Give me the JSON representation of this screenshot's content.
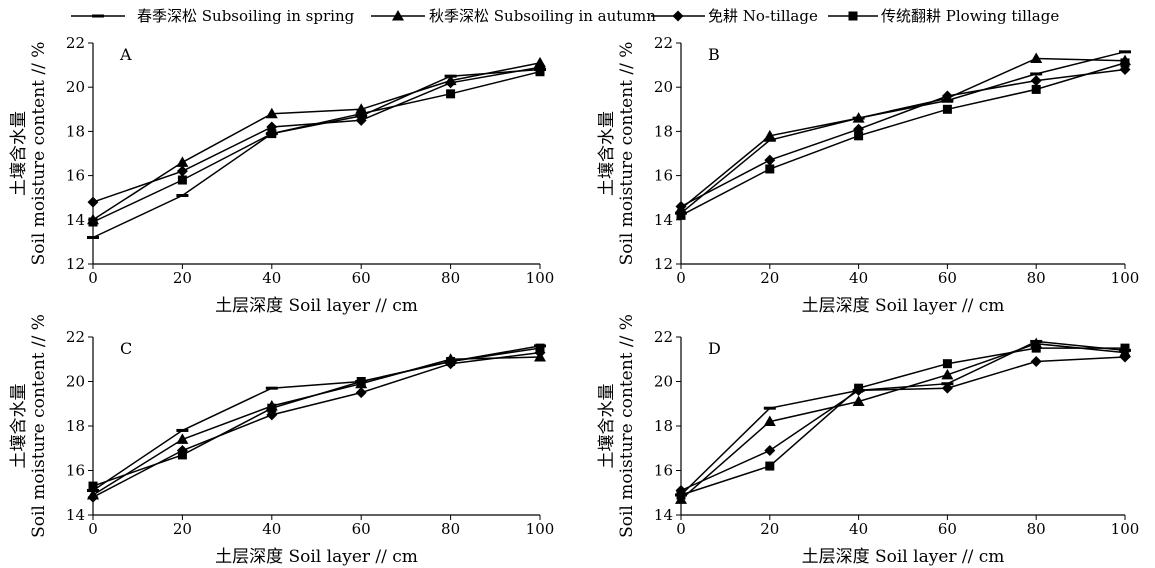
{
  "legend": {
    "items": [
      {
        "label": "春季深松 Subsoiling in spring",
        "marker": "dash"
      },
      {
        "label": "秋季深松 Subsoiling in autumn",
        "marker": "triangle"
      },
      {
        "label": "免耕 No-tillage",
        "marker": "diamond"
      },
      {
        "label": "传统翻耕 Plowing tillage",
        "marker": "square"
      }
    ]
  },
  "chart_data": [
    {
      "type": "line",
      "panel_label": "A",
      "xlabel": "土层深度 Soil layer // cm",
      "ylabel_cn": "土壤含水量",
      "ylabel_en": "Soil moisture content // %",
      "x": [
        0,
        20,
        40,
        60,
        80,
        100
      ],
      "xticks": [
        "0",
        "20",
        "40",
        "60",
        "80",
        "100"
      ],
      "ylim": [
        12,
        22
      ],
      "yticks": [
        "12",
        "14",
        "16",
        "18",
        "20",
        "22"
      ],
      "series": [
        {
          "name": "春季深松 Subsoiling in spring",
          "marker": "dash",
          "values": [
            13.2,
            15.1,
            17.9,
            18.7,
            20.5,
            20.8
          ]
        },
        {
          "name": "秋季深松 Subsoiling in autumn",
          "marker": "triangle",
          "values": [
            14.0,
            16.6,
            18.8,
            19.0,
            20.3,
            21.1
          ]
        },
        {
          "name": "免耕 No-tillage",
          "marker": "diamond",
          "values": [
            14.8,
            16.2,
            18.2,
            18.5,
            20.2,
            20.9
          ]
        },
        {
          "name": "传统翻耕 Plowing tillage",
          "marker": "square",
          "values": [
            13.9,
            15.8,
            17.9,
            18.8,
            19.7,
            20.7
          ]
        }
      ]
    },
    {
      "type": "line",
      "panel_label": "B",
      "xlabel": "土层深度 Soil layer // cm",
      "ylabel_cn": "土壤含水量",
      "ylabel_en": "Soil moisture content // %",
      "x": [
        0,
        20,
        40,
        60,
        80,
        100
      ],
      "xticks": [
        "0",
        "20",
        "40",
        "60",
        "80",
        "100"
      ],
      "ylim": [
        12,
        22
      ],
      "yticks": [
        "12",
        "14",
        "16",
        "18",
        "20",
        "22"
      ],
      "series": [
        {
          "name": "春季深松 Subsoiling in spring",
          "marker": "dash",
          "values": [
            14.3,
            17.6,
            18.6,
            19.4,
            20.6,
            21.6
          ]
        },
        {
          "name": "秋季深松 Subsoiling in autumn",
          "marker": "triangle",
          "values": [
            14.5,
            17.8,
            18.6,
            19.5,
            21.3,
            21.2
          ]
        },
        {
          "name": "免耕 No-tillage",
          "marker": "diamond",
          "values": [
            14.6,
            16.7,
            18.1,
            19.6,
            20.3,
            20.8
          ]
        },
        {
          "name": "传统翻耕 Plowing tillage",
          "marker": "square",
          "values": [
            14.2,
            16.3,
            17.8,
            19.0,
            19.9,
            21.1
          ]
        }
      ]
    },
    {
      "type": "line",
      "panel_label": "C",
      "xlabel": "土层深度 Soil layer // cm",
      "ylabel_cn": "土壤含水量",
      "ylabel_en": "Soil moisture content // %",
      "x": [
        0,
        20,
        40,
        60,
        80,
        100
      ],
      "xticks": [
        "0",
        "20",
        "40",
        "60",
        "80",
        "100"
      ],
      "ylim": [
        14,
        22
      ],
      "yticks": [
        "14",
        "16",
        "18",
        "20",
        "22"
      ],
      "series": [
        {
          "name": "春季深松 Subsoiling in spring",
          "marker": "dash",
          "values": [
            15.1,
            17.8,
            19.7,
            20.0,
            20.9,
            21.6
          ]
        },
        {
          "name": "秋季深松 Subsoiling in autumn",
          "marker": "triangle",
          "values": [
            14.9,
            17.4,
            18.9,
            19.9,
            21.0,
            21.1
          ]
        },
        {
          "name": "免耕 No-tillage",
          "marker": "diamond",
          "values": [
            14.8,
            16.9,
            18.5,
            19.5,
            20.8,
            21.3
          ]
        },
        {
          "name": "传统翻耕 Plowing tillage",
          "marker": "square",
          "values": [
            15.3,
            16.7,
            18.8,
            20.0,
            20.9,
            21.5
          ]
        }
      ]
    },
    {
      "type": "line",
      "panel_label": "D",
      "xlabel": "土层深度 Soil layer // cm",
      "ylabel_cn": "土壤含水量",
      "ylabel_en": "Soil moisture content // %",
      "x": [
        0,
        20,
        40,
        60,
        80,
        100
      ],
      "xticks": [
        "0",
        "20",
        "40",
        "60",
        "80",
        "100"
      ],
      "ylim": [
        14,
        22
      ],
      "yticks": [
        "14",
        "16",
        "18",
        "20",
        "22"
      ],
      "series": [
        {
          "name": "春季深松 Subsoiling in spring",
          "marker": "dash",
          "values": [
            14.9,
            18.8,
            19.6,
            19.9,
            21.8,
            21.4
          ]
        },
        {
          "name": "秋季深松 Subsoiling in autumn",
          "marker": "triangle",
          "values": [
            14.7,
            18.2,
            19.1,
            20.3,
            21.7,
            21.3
          ]
        },
        {
          "name": "免耕 No-tillage",
          "marker": "diamond",
          "values": [
            15.1,
            16.9,
            19.6,
            19.7,
            20.9,
            21.1
          ]
        },
        {
          "name": "传统翻耕 Plowing tillage",
          "marker": "square",
          "values": [
            14.9,
            16.2,
            19.7,
            20.8,
            21.5,
            21.5
          ]
        }
      ]
    }
  ]
}
